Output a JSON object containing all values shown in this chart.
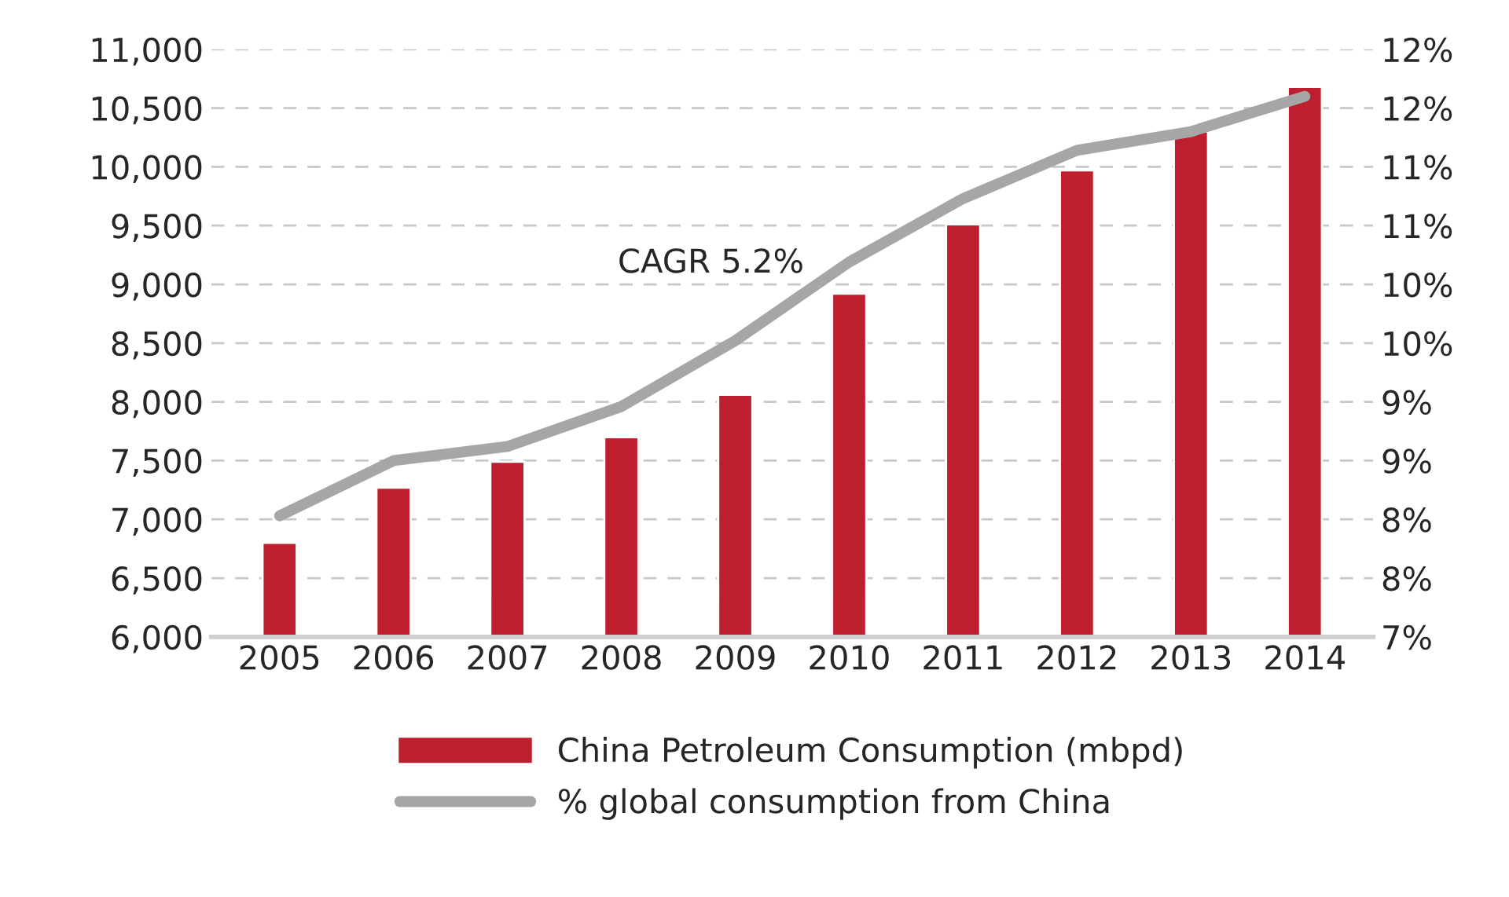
{
  "chart_data": {
    "type": "bar",
    "categories": [
      "2005",
      "2006",
      "2007",
      "2008",
      "2009",
      "2010",
      "2011",
      "2012",
      "2013",
      "2014"
    ],
    "series": [
      {
        "name": "China Petroleum Consumption (mbpd)",
        "color": "#be1e2d",
        "values": [
          6800,
          7270,
          7490,
          7700,
          8060,
          8920,
          9510,
          9970,
          10300,
          10680
        ]
      },
      {
        "name": "% global consumption from China",
        "type": "line",
        "axis": "y2",
        "color": "#a6a6a6",
        "values": [
          8.03,
          8.5,
          8.62,
          8.96,
          9.52,
          10.19,
          10.73,
          11.14,
          11.3,
          11.6
        ]
      }
    ],
    "ylim": [
      6000,
      11000
    ],
    "yticks": [
      {
        "value": 6000,
        "label": "6,000"
      },
      {
        "value": 6500,
        "label": "6,500"
      },
      {
        "value": 7000,
        "label": "7,000"
      },
      {
        "value": 7500,
        "label": "7,500"
      },
      {
        "value": 8000,
        "label": "8,000"
      },
      {
        "value": 8500,
        "label": "8,500"
      },
      {
        "value": 9000,
        "label": "9,000"
      },
      {
        "value": 9500,
        "label": "9,500"
      },
      {
        "value": 10000,
        "label": "10,000"
      },
      {
        "value": 10500,
        "label": "10,500"
      },
      {
        "value": 11000,
        "label": "11,000"
      }
    ],
    "y2lim": [
      7,
      12
    ],
    "y2ticks": [
      {
        "value": 7,
        "label": "7%"
      },
      {
        "value": 7.5,
        "label": "8%"
      },
      {
        "value": 8,
        "label": "8%"
      },
      {
        "value": 8.5,
        "label": "9%"
      },
      {
        "value": 9,
        "label": "9%"
      },
      {
        "value": 9.5,
        "label": "10%"
      },
      {
        "value": 10,
        "label": "10%"
      },
      {
        "value": 10.5,
        "label": "11%"
      },
      {
        "value": 11,
        "label": "11%"
      },
      {
        "value": 11.5,
        "label": "12%"
      },
      {
        "value": 12,
        "label": "12%"
      }
    ],
    "annotations": [
      "CAGR 5.2%"
    ],
    "grid": "y",
    "legend": "bottom"
  }
}
